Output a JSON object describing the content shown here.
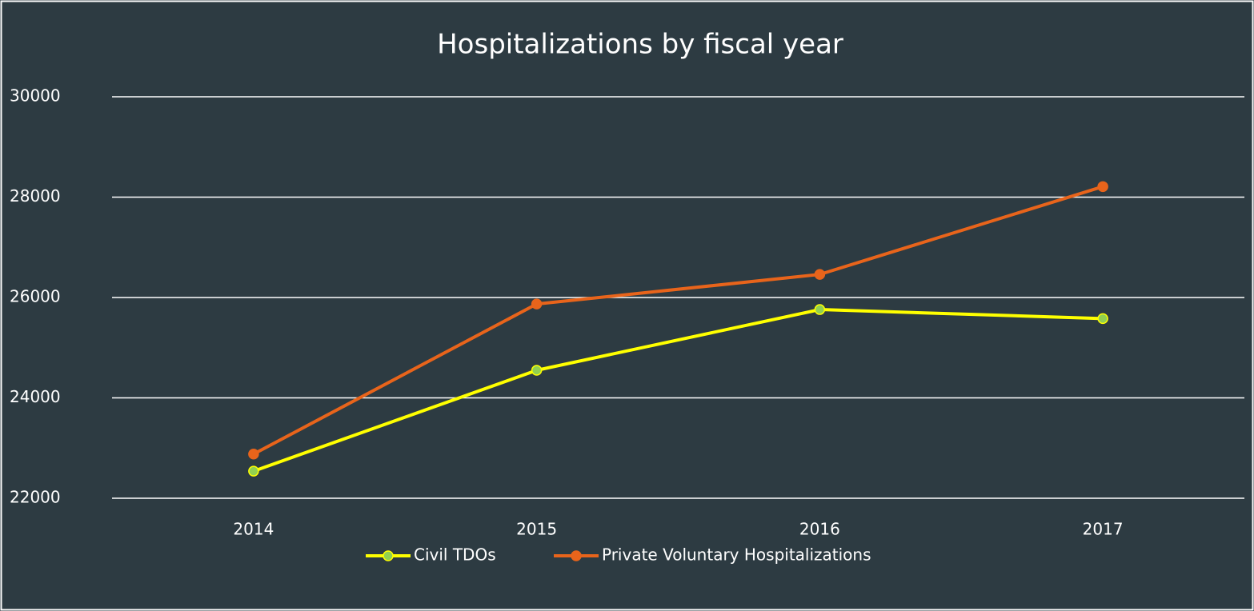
{
  "chart_data": {
    "type": "line",
    "title": "Hospitalizations by fiscal year",
    "categories": [
      "2014",
      "2015",
      "2016",
      "2017"
    ],
    "series": [
      {
        "name": "Civil TDOs",
        "color": "#ffff00",
        "marker_color": "#92d050",
        "values": [
          22540,
          24550,
          25760,
          25580
        ]
      },
      {
        "name": "Private Voluntary Hospitalizations",
        "color": "#e8641b",
        "marker_color": "#e8641b",
        "values": [
          22880,
          25870,
          26460,
          28210
        ]
      }
    ],
    "ylim": [
      22000,
      30000
    ],
    "yticks": [
      22000,
      24000,
      26000,
      28000,
      30000
    ],
    "grid": true,
    "legend": "bottom"
  }
}
